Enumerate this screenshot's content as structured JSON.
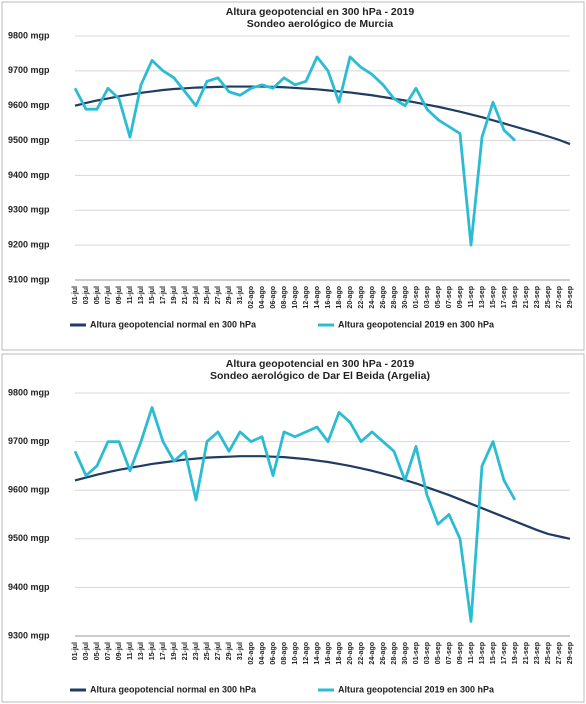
{
  "chart_data": [
    {
      "type": "line",
      "title": "Altura geopotencial en 300 hPa - 2019",
      "subtitle": "Sondeo aerológico de Murcia",
      "categories": [
        "01-jul",
        "03-jul",
        "05-jul",
        "07-jul",
        "09-jul",
        "11-jul",
        "13-jul",
        "15-jul",
        "17-jul",
        "19-jul",
        "21-jul",
        "23-jul",
        "25-jul",
        "27-jul",
        "29-jul",
        "31-jul",
        "02-ago",
        "04-ago",
        "06-ago",
        "08-ago",
        "10-ago",
        "12-ago",
        "14-ago",
        "16-ago",
        "18-ago",
        "20-ago",
        "22-ago",
        "24-ago",
        "26-ago",
        "28-ago",
        "30-ago",
        "01-sep",
        "03-sep",
        "05-sep",
        "07-sep",
        "09-sep",
        "11-sep",
        "13-sep",
        "15-sep",
        "17-sep",
        "19-sep",
        "21-sep",
        "23-sep",
        "25-sep",
        "27-sep",
        "29-sep"
      ],
      "series": [
        {
          "name": "Altura geopotencial normal en 300 hPa",
          "color": "#1f3d63",
          "values": [
            9600,
            9608,
            9615,
            9621,
            9627,
            9632,
            9637,
            9641,
            9645,
            9648,
            9650,
            9652,
            9653,
            9654,
            9655,
            9655,
            9655,
            9655,
            9654,
            9653,
            9651,
            9649,
            9647,
            9644,
            9641,
            9638,
            9634,
            9630,
            9625,
            9620,
            9615,
            9609,
            9603,
            9597,
            9590,
            9583,
            9575,
            9567,
            9558,
            9549,
            9540,
            9531,
            9522,
            9512,
            9502,
            9490
          ]
        },
        {
          "name": "Altura geopotencial 2019 en 300 hPa",
          "color": "#2bbcd4",
          "values": [
            9650,
            9590,
            9590,
            9650,
            9620,
            9510,
            9660,
            9730,
            9700,
            9680,
            9640,
            9600,
            9670,
            9680,
            9640,
            9630,
            9650,
            9660,
            9650,
            9680,
            9660,
            9670,
            9740,
            9700,
            9610,
            9740,
            9710,
            9690,
            9660,
            9620,
            9600,
            9650,
            9590,
            9560,
            9540,
            9520,
            9200,
            9510,
            9610,
            9530,
            9500,
            null,
            null,
            null,
            null,
            null
          ]
        }
      ],
      "ylim": [
        9100,
        9800
      ],
      "yticks": [
        {
          "value": 9100,
          "label": "9100 mgp"
        },
        {
          "value": 9200,
          "label": "9200 mgp"
        },
        {
          "value": 9300,
          "label": "9300 mgp"
        },
        {
          "value": 9400,
          "label": "9400 mgp"
        },
        {
          "value": 9500,
          "label": "9500 mgp"
        },
        {
          "value": 9600,
          "label": "9600 mgp"
        },
        {
          "value": 9700,
          "label": "9700 mgp"
        },
        {
          "value": 9800,
          "label": "9800 mgp"
        }
      ],
      "grid": true
    },
    {
      "type": "line",
      "title": "Altura geopotencial en 300 hPa - 2019",
      "subtitle": "Sondeo aerológico de Dar El Beida (Argelia)",
      "categories": [
        "01-jul",
        "03-jul",
        "05-jul",
        "07-jul",
        "09-jul",
        "11-jul",
        "13-jul",
        "15-jul",
        "17-jul",
        "19-jul",
        "21-jul",
        "23-jul",
        "25-jul",
        "27-jul",
        "29-jul",
        "31-jul",
        "02-ago",
        "04-ago",
        "06-ago",
        "08-ago",
        "10-ago",
        "12-ago",
        "14-ago",
        "16-ago",
        "18-ago",
        "20-ago",
        "22-ago",
        "24-ago",
        "26-ago",
        "28-ago",
        "30-ago",
        "01-sep",
        "03-sep",
        "05-sep",
        "07-sep",
        "09-sep",
        "11-sep",
        "13-sep",
        "15-sep",
        "17-sep",
        "19-sep",
        "21-sep",
        "23-sep",
        "25-sep",
        "27-sep",
        "29-sep"
      ],
      "series": [
        {
          "name": "Altura geopotencial normal en 300 hPa",
          "color": "#1f3d63",
          "values": [
            9620,
            9626,
            9632,
            9637,
            9642,
            9646,
            9650,
            9654,
            9657,
            9660,
            9663,
            9665,
            9667,
            9668,
            9669,
            9670,
            9670,
            9670,
            9669,
            9668,
            9666,
            9664,
            9661,
            9658,
            9654,
            9650,
            9645,
            9640,
            9634,
            9628,
            9621,
            9614,
            9606,
            9598,
            9590,
            9581,
            9572,
            9563,
            9554,
            9545,
            9536,
            9527,
            9518,
            9510,
            9505,
            9500
          ]
        },
        {
          "name": "Altura geopotencial 2019 en 300 hPa",
          "color": "#2bbcd4",
          "values": [
            9680,
            9630,
            9650,
            9700,
            9700,
            9640,
            9700,
            9770,
            9700,
            9660,
            9680,
            9580,
            9700,
            9720,
            9680,
            9720,
            9700,
            9710,
            9630,
            9720,
            9710,
            9720,
            9730,
            9700,
            9760,
            9740,
            9700,
            9720,
            9700,
            9680,
            9620,
            9690,
            9590,
            9530,
            9550,
            9500,
            9330,
            9650,
            9700,
            9620,
            9580,
            null,
            null,
            null,
            null,
            null
          ]
        }
      ],
      "ylim": [
        9300,
        9800
      ],
      "yticks": [
        {
          "value": 9300,
          "label": "9300 mgp"
        },
        {
          "value": 9400,
          "label": "9400 mgp"
        },
        {
          "value": 9500,
          "label": "9500 mgp"
        },
        {
          "value": 9600,
          "label": "9600 mgp"
        },
        {
          "value": 9700,
          "label": "9700 mgp"
        },
        {
          "value": 9800,
          "label": "9800 mgp"
        }
      ],
      "grid": true
    }
  ]
}
